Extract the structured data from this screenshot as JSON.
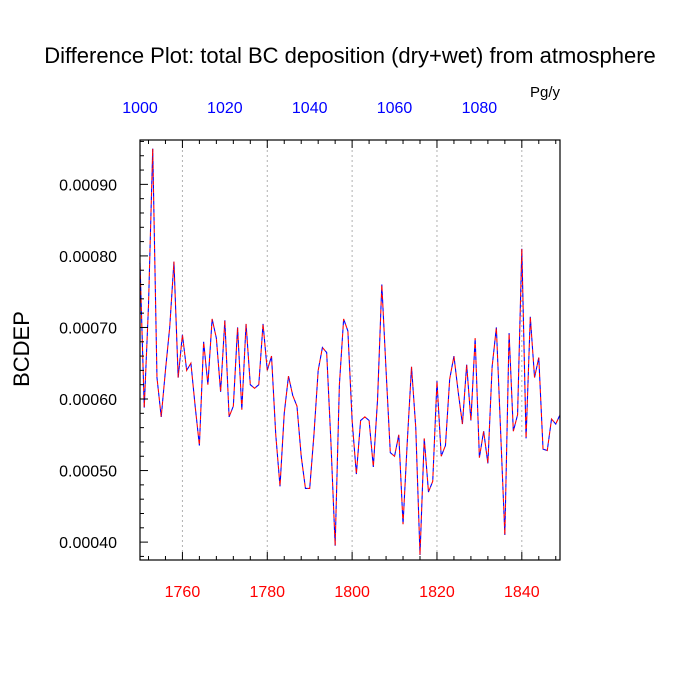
{
  "chart_data": {
    "type": "line",
    "title": "Difference Plot: total BC deposition (dry+wet) from atmosphere",
    "units": "Pg/y",
    "ylabel": "BCDEP",
    "xlabel": "",
    "xlim": [
      1750,
      1849
    ],
    "ylim": [
      0.000375,
      0.000962
    ],
    "grid": "vertical dotted at major bottom ticks",
    "bottom_axis": {
      "color": "#ff0000",
      "tick_values": [
        1760,
        1780,
        1800,
        1820,
        1840
      ],
      "tick_labels": [
        "1760",
        "1780",
        "1800",
        "1820",
        "1840"
      ]
    },
    "top_axis": {
      "color": "#0000ff",
      "offset_from_bottom": -750,
      "tick_values": [
        1000,
        1020,
        1040,
        1060,
        1080
      ],
      "tick_labels": [
        "1000",
        "1020",
        "1040",
        "1060",
        "1080"
      ]
    },
    "y_ticks": [
      0.0004,
      0.0005,
      0.0006,
      0.0007,
      0.0008,
      0.0009
    ],
    "y_tick_labels": [
      "0.00040",
      "0.00050",
      "0.00060",
      "0.00070",
      "0.00080",
      "0.00090"
    ],
    "series": [
      {
        "line_colors": [
          "#0000ff",
          "#ff0000"
        ],
        "dashed": true,
        "x": [
          1750,
          1751,
          1752,
          1753,
          1754,
          1755,
          1756,
          1757,
          1758,
          1759,
          1760,
          1761,
          1762,
          1763,
          1764,
          1765,
          1766,
          1767,
          1768,
          1769,
          1770,
          1771,
          1772,
          1773,
          1774,
          1775,
          1776,
          1777,
          1778,
          1779,
          1780,
          1781,
          1782,
          1783,
          1784,
          1785,
          1786,
          1787,
          1788,
          1789,
          1790,
          1791,
          1792,
          1793,
          1794,
          1795,
          1796,
          1797,
          1798,
          1799,
          1800,
          1801,
          1802,
          1803,
          1804,
          1805,
          1806,
          1807,
          1808,
          1809,
          1810,
          1811,
          1812,
          1813,
          1814,
          1815,
          1816,
          1817,
          1818,
          1819,
          1820,
          1821,
          1822,
          1823,
          1824,
          1825,
          1826,
          1827,
          1828,
          1829,
          1830,
          1831,
          1832,
          1833,
          1834,
          1835,
          1836,
          1837,
          1838,
          1839,
          1840,
          1841,
          1842,
          1843,
          1844,
          1845,
          1846,
          1847,
          1848,
          1849
        ],
        "values": [
          0.00079,
          0.000588,
          0.00073,
          0.00095,
          0.00063,
          0.000575,
          0.00064,
          0.0007,
          0.000792,
          0.00063,
          0.00069,
          0.00064,
          0.00065,
          0.00059,
          0.000535,
          0.00068,
          0.00062,
          0.000712,
          0.000685,
          0.00061,
          0.00071,
          0.000575,
          0.00059,
          0.0007,
          0.000585,
          0.000705,
          0.00062,
          0.000615,
          0.00062,
          0.000705,
          0.00064,
          0.00066,
          0.00055,
          0.000478,
          0.00058,
          0.000632,
          0.000605,
          0.00059,
          0.00052,
          0.000475,
          0.000475,
          0.00055,
          0.00064,
          0.000672,
          0.000665,
          0.00054,
          0.000395,
          0.00062,
          0.000712,
          0.000695,
          0.00057,
          0.000495,
          0.00057,
          0.000575,
          0.00057,
          0.000505,
          0.0006,
          0.00076,
          0.00064,
          0.000525,
          0.00052,
          0.00055,
          0.000425,
          0.00054,
          0.000645,
          0.00056,
          0.000382,
          0.000545,
          0.00047,
          0.000485,
          0.000625,
          0.00052,
          0.000535,
          0.000628,
          0.00066,
          0.00061,
          0.000565,
          0.000648,
          0.00057,
          0.000685,
          0.000518,
          0.000555,
          0.00051,
          0.000645,
          0.0007,
          0.000555,
          0.00041,
          0.000692,
          0.000555,
          0.000578,
          0.00081,
          0.000545,
          0.000715,
          0.00063,
          0.000658,
          0.00053,
          0.000528,
          0.000572,
          0.000565,
          0.000578
        ]
      }
    ]
  }
}
